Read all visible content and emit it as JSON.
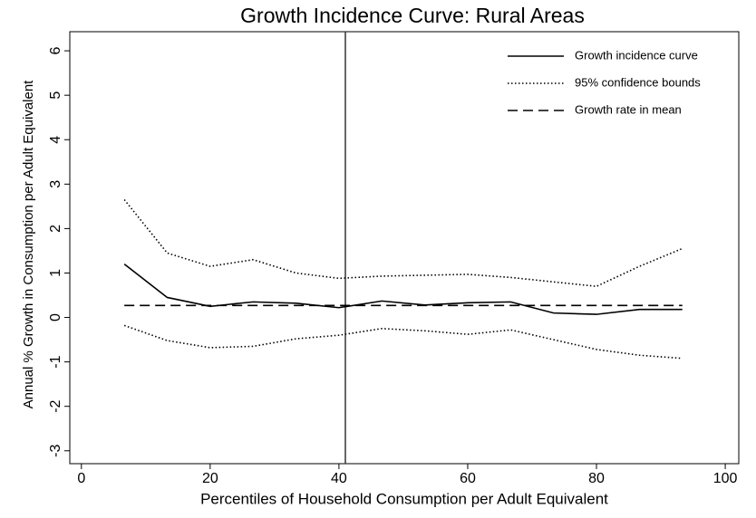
{
  "chart_data": {
    "type": "line",
    "title": "Growth Incidence Curve: Rural Areas",
    "x_label": "Percentiles of Household Consumption per Adult Equivalent",
    "y_label": "Annual % Growth in Consumption per Adult Equivalent",
    "x": [
      6.67,
      13.33,
      20,
      26.67,
      33.33,
      40,
      46.67,
      53.33,
      60,
      66.67,
      73.33,
      80,
      86.67,
      93.33
    ],
    "series": [
      {
        "name": "Growth incidence curve",
        "color": "#000000",
        "style": "solid",
        "values": [
          1.2,
          0.45,
          0.25,
          0.35,
          0.32,
          0.22,
          0.37,
          0.28,
          0.33,
          0.35,
          0.1,
          0.07,
          0.18,
          0.18
        ]
      },
      {
        "name": "95% confidence bounds",
        "color": "#000000",
        "style": "dotted",
        "values": [
          2.65,
          1.45,
          1.15,
          1.3,
          1.0,
          0.88,
          0.93,
          0.95,
          0.97,
          0.9,
          0.8,
          0.7,
          1.15,
          1.55
        ]
      },
      {
        "color": "#000000",
        "style": "dotted",
        "values": [
          -0.18,
          -0.52,
          -0.68,
          -0.65,
          -0.48,
          -0.4,
          -0.25,
          -0.3,
          -0.38,
          -0.28,
          -0.5,
          -0.72,
          -0.85,
          -0.92
        ]
      },
      {
        "name": "Growth rate in mean",
        "color": "#000000",
        "style": "dashed",
        "values": [
          0.27,
          0.27,
          0.27,
          0.27,
          0.27,
          0.27,
          0.27,
          0.27,
          0.27,
          0.27,
          0.27,
          0.27,
          0.27,
          0.27
        ]
      }
    ],
    "vline": 41,
    "xlim": [
      -1.8,
      102.1
    ],
    "ylim": [
      -3.29,
      6.43
    ],
    "xticks": [
      0,
      20,
      40,
      60,
      80,
      100
    ],
    "yticks": [
      -3,
      -2,
      -1,
      0,
      1,
      2,
      3,
      4,
      5,
      6
    ],
    "legend": "top-right"
  }
}
